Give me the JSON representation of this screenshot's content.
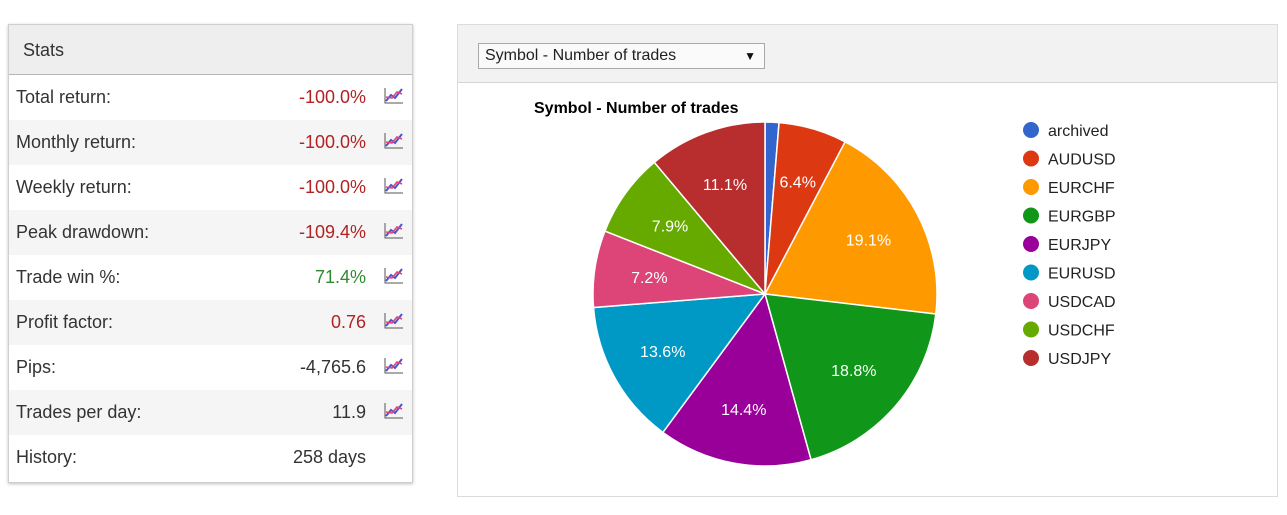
{
  "stats": {
    "title": "Stats",
    "rows": [
      {
        "label": "Total return:",
        "value": "-100.0%",
        "tone": "neg",
        "has_chart": true
      },
      {
        "label": "Monthly return:",
        "value": "-100.0%",
        "tone": "neg",
        "has_chart": true
      },
      {
        "label": "Weekly return:",
        "value": "-100.0%",
        "tone": "neg",
        "has_chart": true
      },
      {
        "label": "Peak drawdown:",
        "value": "-109.4%",
        "tone": "neg",
        "has_chart": true
      },
      {
        "label": "Trade win %:",
        "value": "71.4%",
        "tone": "pos",
        "has_chart": true
      },
      {
        "label": "Profit factor:",
        "value": "0.76",
        "tone": "neg",
        "has_chart": true
      },
      {
        "label": "Pips:",
        "value": "-4,765.6",
        "tone": "neu",
        "has_chart": true
      },
      {
        "label": "Trades per day:",
        "value": "11.9",
        "tone": "neu",
        "has_chart": true
      },
      {
        "label": "History:",
        "value": "258 days",
        "tone": "neu",
        "has_chart": false
      }
    ],
    "chart_icon": "line-chart-icon"
  },
  "selector": {
    "selected": "Symbol - Number of trades",
    "arrow": "▼"
  },
  "colors": {
    "negative": "#b22222",
    "positive": "#2e8b2e"
  },
  "chart_data": {
    "type": "pie",
    "title": "Symbol - Number of trades",
    "legend_position": "right",
    "slices": [
      {
        "label": "archived",
        "value": 1.3,
        "display": "",
        "color": "#3366cc"
      },
      {
        "label": "AUDUSD",
        "value": 6.4,
        "display": "6.4%",
        "color": "#dc3912"
      },
      {
        "label": "EURCHF",
        "value": 19.1,
        "display": "19.1%",
        "color": "#ff9900"
      },
      {
        "label": "EURGBP",
        "value": 18.8,
        "display": "18.8%",
        "color": "#109618"
      },
      {
        "label": "EURJPY",
        "value": 14.4,
        "display": "14.4%",
        "color": "#990099"
      },
      {
        "label": "EURUSD",
        "value": 13.6,
        "display": "13.6%",
        "color": "#0099c6"
      },
      {
        "label": "USDCAD",
        "value": 7.2,
        "display": "7.2%",
        "color": "#dd4477"
      },
      {
        "label": "USDCHF",
        "value": 7.9,
        "display": "7.9%",
        "color": "#66aa00"
      },
      {
        "label": "USDJPY",
        "value": 11.1,
        "display": "11.1%",
        "color": "#b82e2e"
      }
    ]
  }
}
